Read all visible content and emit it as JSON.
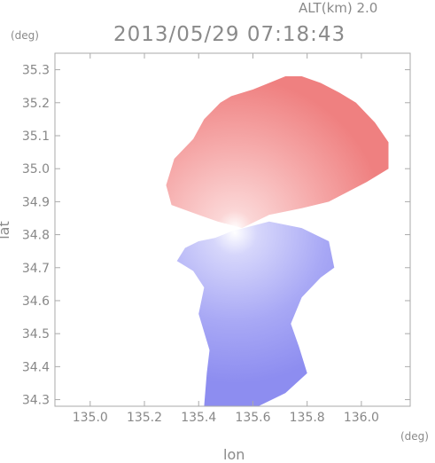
{
  "header": {
    "altitude": "ALT(km) 2.0",
    "timestamp": "2013/05/29 07:18:43"
  },
  "chart_data": {
    "type": "heatmap",
    "title": "2013/05/29 07:18:43",
    "subtitle": "ALT(km) 2.0",
    "xlabel": "lon",
    "ylabel": "lat",
    "x_unit": "(deg)",
    "y_unit": "(deg)",
    "xlim": [
      134.87,
      136.18
    ],
    "ylim": [
      34.28,
      35.35
    ],
    "xticks": [
      135.0,
      135.2,
      135.4,
      135.6,
      135.8,
      136.0
    ],
    "xtick_labels": [
      "135.0",
      "135.2",
      "135.4",
      "135.6",
      "135.8",
      "136.0"
    ],
    "yticks": [
      34.3,
      34.4,
      34.5,
      34.6,
      34.7,
      34.8,
      34.9,
      35.0,
      35.1,
      35.2,
      35.3
    ],
    "ytick_labels": [
      "34.3",
      "34.4",
      "34.5",
      "34.6",
      "34.7",
      "34.8",
      "34.9",
      "35.0",
      "35.1",
      "35.2",
      "35.3"
    ],
    "grid": false,
    "legend": "none",
    "radar_center": {
      "lon": 135.52,
      "lat": 34.81
    },
    "colors": {
      "negative": "#7f7ff0",
      "zero": "#ffffff",
      "positive": "#f07878",
      "axis": "#aaaaaa",
      "text": "#888888"
    },
    "regions": [
      {
        "name": "north-echo",
        "sign": "positive",
        "polygon": [
          [
            135.3,
            34.89
          ],
          [
            135.28,
            34.95
          ],
          [
            135.31,
            35.03
          ],
          [
            135.38,
            35.09
          ],
          [
            135.42,
            35.15
          ],
          [
            135.48,
            35.2
          ],
          [
            135.52,
            35.22
          ],
          [
            135.6,
            35.24
          ],
          [
            135.66,
            35.26
          ],
          [
            135.72,
            35.28
          ],
          [
            135.78,
            35.28
          ],
          [
            135.85,
            35.26
          ],
          [
            135.92,
            35.23
          ],
          [
            135.98,
            35.2
          ],
          [
            136.05,
            35.14
          ],
          [
            136.1,
            35.08
          ],
          [
            136.1,
            35.0
          ],
          [
            136.02,
            34.96
          ],
          [
            135.95,
            34.93
          ],
          [
            135.88,
            34.9
          ],
          [
            135.78,
            34.88
          ],
          [
            135.66,
            34.86
          ],
          [
            135.56,
            34.82
          ],
          [
            135.47,
            34.84
          ],
          [
            135.4,
            34.86
          ]
        ]
      },
      {
        "name": "south-echo",
        "sign": "negative",
        "polygon": [
          [
            135.52,
            34.81
          ],
          [
            135.46,
            34.79
          ],
          [
            135.4,
            34.78
          ],
          [
            135.35,
            34.76
          ],
          [
            135.32,
            34.72
          ],
          [
            135.38,
            34.69
          ],
          [
            135.42,
            34.64
          ],
          [
            135.4,
            34.56
          ],
          [
            135.44,
            34.45
          ],
          [
            135.43,
            34.38
          ],
          [
            135.42,
            34.28
          ],
          [
            135.62,
            34.28
          ],
          [
            135.72,
            34.32
          ],
          [
            135.8,
            34.38
          ],
          [
            135.77,
            34.46
          ],
          [
            135.74,
            34.53
          ],
          [
            135.78,
            34.61
          ],
          [
            135.85,
            34.67
          ],
          [
            135.9,
            34.7
          ],
          [
            135.88,
            34.78
          ],
          [
            135.78,
            34.82
          ],
          [
            135.66,
            34.84
          ]
        ]
      }
    ]
  }
}
